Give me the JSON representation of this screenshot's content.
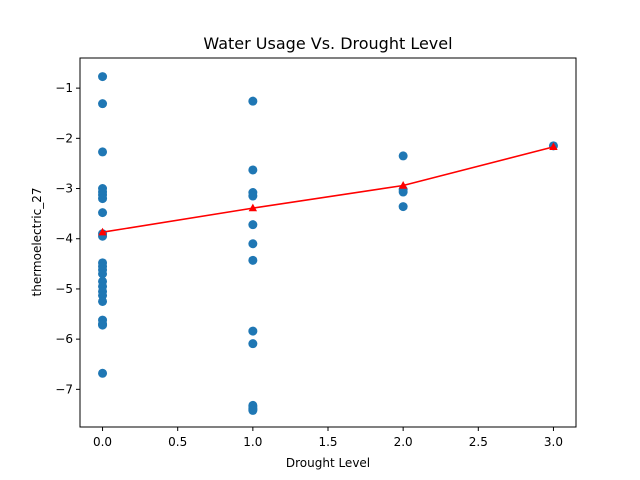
{
  "chart_data": {
    "type": "scatter",
    "title": "Water Usage Vs. Drought Level",
    "xlabel": "Drought Level",
    "ylabel": "thermoelectric_27",
    "xlim": [
      -0.15,
      3.15
    ],
    "ylim": [
      -7.75,
      -0.4
    ],
    "xticks": [
      0.0,
      0.5,
      1.0,
      1.5,
      2.0,
      2.5,
      3.0
    ],
    "xtick_labels": [
      "0.0",
      "0.5",
      "1.0",
      "1.5",
      "2.0",
      "2.5",
      "3.0"
    ],
    "yticks": [
      -7,
      -6,
      -5,
      -4,
      -3,
      -2,
      -1
    ],
    "ytick_labels": [
      "−7",
      "−6",
      "−5",
      "−4",
      "−3",
      "−2",
      "−1"
    ],
    "grid": false,
    "legend": "none",
    "series": [
      {
        "kind": "scatter",
        "color": "#1f77b4",
        "marker": "circle",
        "x": [
          0,
          0,
          0,
          0,
          0,
          0,
          0,
          0,
          0,
          0,
          0,
          0,
          0,
          0,
          0,
          0,
          0,
          0,
          0,
          0,
          0,
          0,
          0,
          1,
          1,
          1,
          1,
          1,
          1,
          1,
          1,
          1,
          1,
          1,
          1,
          1,
          1,
          2,
          2,
          2,
          2,
          3
        ],
        "y": [
          -0.77,
          -1.31,
          -2.27,
          -3.0,
          -3.07,
          -3.13,
          -3.2,
          -3.48,
          -3.9,
          -3.95,
          -4.48,
          -4.55,
          -4.62,
          -4.7,
          -4.85,
          -4.95,
          -5.05,
          -5.13,
          -5.25,
          -5.62,
          -5.7,
          -5.72,
          -6.68,
          -1.26,
          -2.63,
          -3.08,
          -3.15,
          -3.72,
          -4.1,
          -4.43,
          -5.84,
          -6.09,
          -7.32,
          -7.35,
          -7.38,
          -7.4,
          -7.42,
          -2.35,
          -3.02,
          -3.07,
          -3.36,
          -2.15
        ]
      },
      {
        "kind": "line",
        "color": "#ff0000",
        "marker": "triangle",
        "x": [
          0,
          1,
          2,
          3
        ],
        "y": [
          -3.87,
          -3.39,
          -2.94,
          -2.17
        ]
      }
    ]
  }
}
